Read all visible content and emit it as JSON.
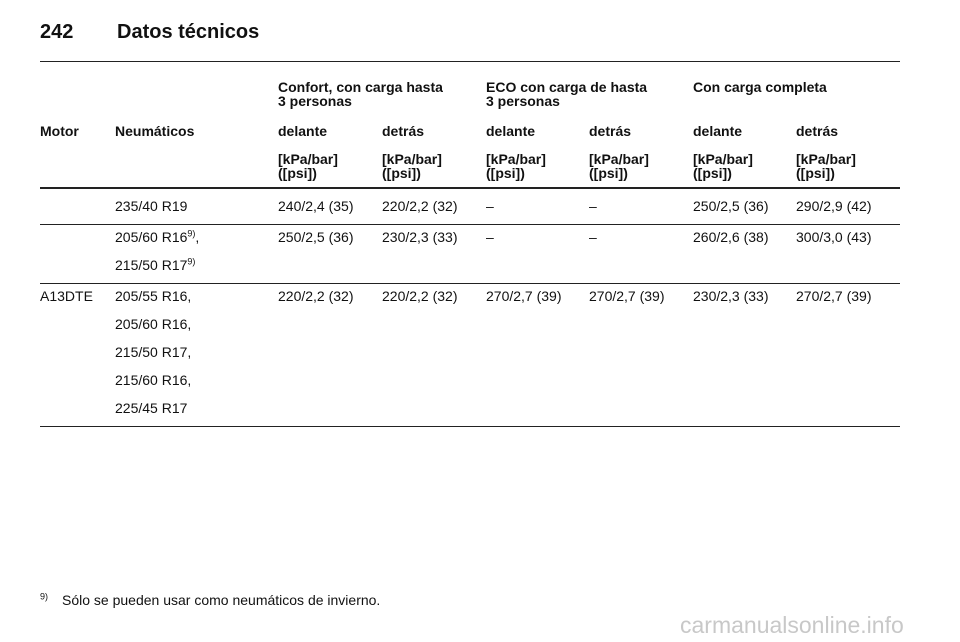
{
  "header": {
    "page": "242",
    "title": "Datos técnicos"
  },
  "table": {
    "groups": [
      {
        "lines": [
          "Confort, con carga hasta",
          "3 personas"
        ]
      },
      {
        "lines": [
          "ECO con carga de hasta",
          "3 personas"
        ]
      },
      {
        "lines": [
          "Con carga completa"
        ]
      }
    ],
    "columns": [
      "Motor",
      "Neumáticos",
      "delante",
      "detrás",
      "delante",
      "detrás",
      "delante",
      "detrás"
    ],
    "units": [
      [
        "[kPa/bar]",
        "([psi])"
      ],
      [
        "[kPa/bar]",
        "([psi])"
      ],
      [
        "[kPa/bar]",
        "([psi])"
      ],
      [
        "[kPa/bar]",
        "([psi])"
      ],
      [
        "[kPa/bar]",
        "([psi])"
      ],
      [
        "[kPa/bar]",
        "([psi])"
      ]
    ],
    "motor": "A13DTE",
    "rows": [
      {
        "tires": [
          {
            "size": "235/40 R19"
          }
        ],
        "values": [
          "240/2,4 (35)",
          "220/2,2 (32)",
          "–",
          "–",
          "250/2,5 (36)",
          "290/2,9 (42)"
        ]
      },
      {
        "tires": [
          {
            "size": "205/60 R16",
            "note": "9)",
            "after": ","
          },
          {
            "size": "215/50 R17",
            "note": "9)"
          }
        ],
        "values": [
          "250/2,5 (36)",
          "230/2,3 (33)",
          "–",
          "–",
          "260/2,6 (38)",
          "300/3,0 (43)"
        ]
      },
      {
        "tires": [
          {
            "size": "205/55 R16,"
          },
          {
            "size": "205/60 R16,"
          },
          {
            "size": "215/50 R17,"
          },
          {
            "size": "215/60 R16,"
          },
          {
            "size": "225/45 R17"
          }
        ],
        "values": [
          "220/2,2 (32)",
          "220/2,2 (32)",
          "270/2,7 (39)",
          "270/2,7 (39)",
          "230/2,3 (33)",
          "270/2,7 (39)"
        ]
      }
    ]
  },
  "footnote": {
    "mark": "9)",
    "text": "Sólo se pueden usar como neumáticos de invierno."
  },
  "watermark": "carmanualsonline.info"
}
